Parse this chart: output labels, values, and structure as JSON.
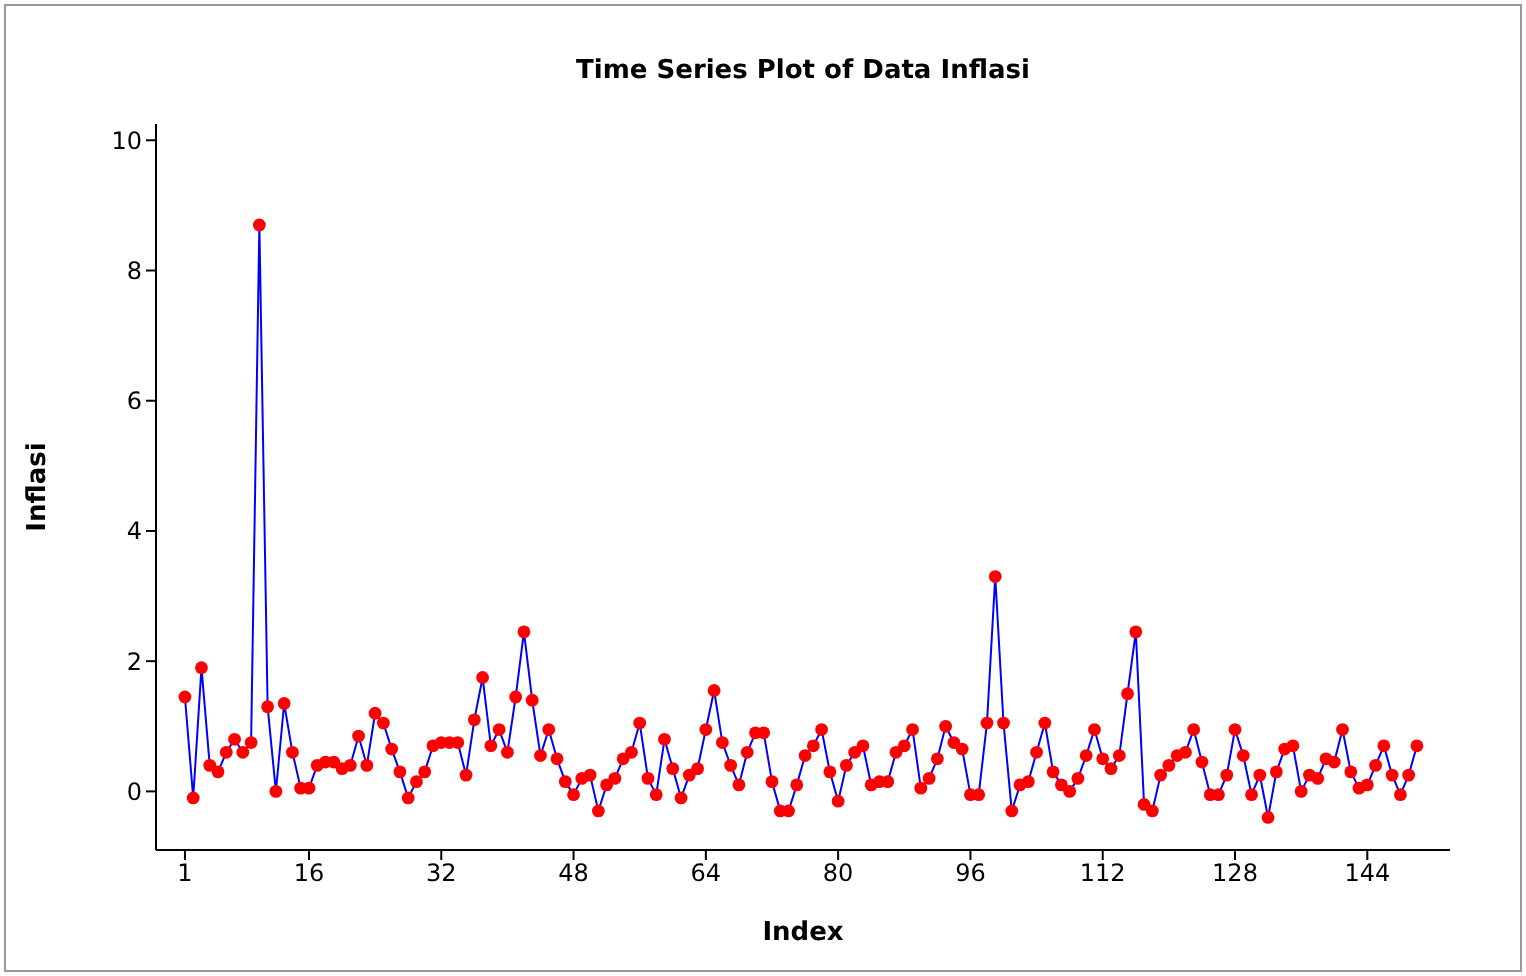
{
  "chart_data": {
    "type": "line",
    "title": "Time Series Plot of Data Inflasi",
    "xlabel": "Index",
    "ylabel": "Inflasi",
    "x": [
      1,
      2,
      3,
      4,
      5,
      6,
      7,
      8,
      9,
      10,
      11,
      12,
      13,
      14,
      15,
      16,
      17,
      18,
      19,
      20,
      21,
      22,
      23,
      24,
      25,
      26,
      27,
      28,
      29,
      30,
      31,
      32,
      33,
      34,
      35,
      36,
      37,
      38,
      39,
      40,
      41,
      42,
      43,
      44,
      45,
      46,
      47,
      48,
      49,
      50,
      51,
      52,
      53,
      54,
      55,
      56,
      57,
      58,
      59,
      60,
      61,
      62,
      63,
      64,
      65,
      66,
      67,
      68,
      69,
      70,
      71,
      72,
      73,
      74,
      75,
      76,
      77,
      78,
      79,
      80,
      81,
      82,
      83,
      84,
      85,
      86,
      87,
      88,
      89,
      90,
      91,
      92,
      93,
      94,
      95,
      96,
      97,
      98,
      99,
      100,
      101,
      102,
      103,
      104,
      105,
      106,
      107,
      108,
      109,
      110,
      111,
      112,
      113,
      114,
      115,
      116,
      117,
      118,
      119,
      120,
      121,
      122,
      123,
      124,
      125,
      126,
      127,
      128,
      129,
      130,
      131,
      132,
      133,
      134,
      135,
      136,
      137,
      138,
      139,
      140,
      141,
      142,
      143,
      144,
      145,
      146,
      147,
      148,
      149,
      150
    ],
    "series": [
      {
        "color": "#0000ff",
        "values": [
          1.45,
          -0.1,
          1.9,
          0.4,
          0.3,
          0.6,
          0.8,
          0.6,
          0.75,
          8.7,
          1.3,
          0.0,
          1.35,
          0.6,
          0.05,
          0.05,
          0.4,
          0.45,
          0.45,
          0.35,
          0.4,
          0.85,
          0.4,
          1.2,
          1.05,
          0.65,
          0.3,
          -0.1,
          0.15,
          0.3,
          0.7,
          0.75,
          0.75,
          0.75,
          0.25,
          1.1,
          1.75,
          0.7,
          0.95,
          0.6,
          1.45,
          2.45,
          1.4,
          0.55,
          0.95,
          0.5,
          0.15,
          -0.05,
          0.2,
          0.25,
          -0.3,
          0.1,
          0.2,
          0.5,
          0.6,
          1.05,
          0.2,
          -0.05,
          0.8,
          0.35,
          -0.1,
          0.25,
          0.35,
          0.95,
          1.55,
          0.75,
          0.4,
          0.1,
          0.6,
          0.9,
          0.9,
          0.15,
          -0.3,
          -0.3,
          0.1,
          0.55,
          0.7,
          0.95,
          0.3,
          -0.15,
          0.4,
          0.6,
          0.7,
          0.1,
          0.15,
          0.15,
          0.6,
          0.7,
          0.95,
          0.05,
          0.2,
          0.5,
          1.0,
          0.75,
          0.65,
          -0.05,
          -0.05,
          1.05,
          3.3,
          1.05,
          -0.3,
          0.1,
          0.15,
          0.6,
          1.05,
          0.3,
          0.1,
          0.0,
          0.2,
          0.55,
          0.95,
          0.5,
          0.35,
          0.55,
          1.5,
          2.45,
          -0.2,
          -0.3,
          0.25,
          0.4,
          0.55,
          0.6,
          0.95,
          0.45,
          -0.05,
          -0.05,
          0.25,
          0.95,
          0.55,
          -0.05,
          0.25,
          -0.4,
          0.3,
          0.65,
          0.7,
          0.0,
          0.25,
          0.2,
          0.5,
          0.45,
          0.95,
          0.3,
          0.05,
          0.1,
          0.4,
          0.7,
          0.25,
          -0.05,
          0.25,
          0.7
        ]
      }
    ],
    "xlim": [
      -2.5,
      154
    ],
    "ylim": [
      -0.9,
      10.25
    ],
    "xticks": [
      1,
      16,
      32,
      48,
      64,
      80,
      96,
      112,
      128,
      144
    ],
    "yticks": [
      0,
      2,
      4,
      6,
      8,
      10
    ],
    "marker": "circle"
  }
}
